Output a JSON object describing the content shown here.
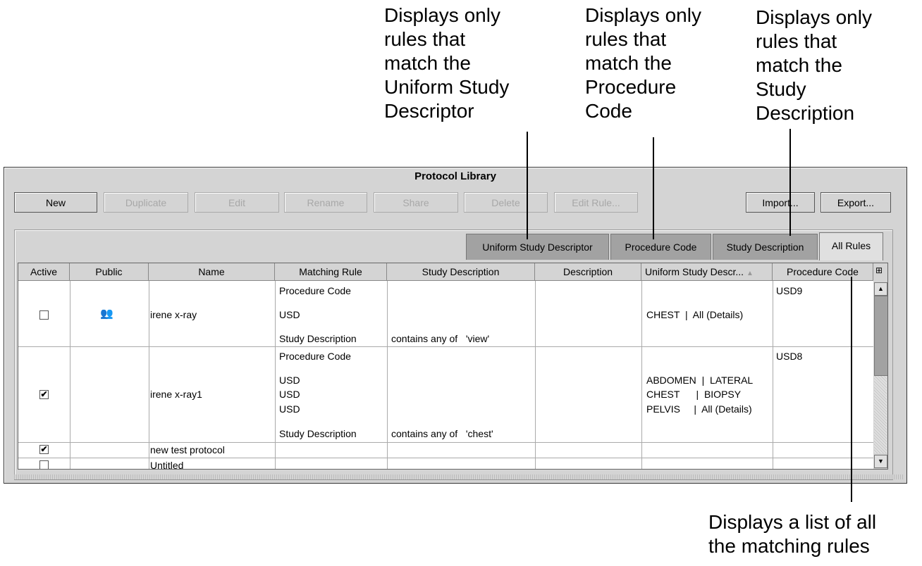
{
  "annotations": {
    "usd": "Displays only\nrules that\nmatch the\nUniform Study\nDescriptor",
    "procedure": "Displays only\nrules that\nmatch the\nProcedure\nCode",
    "study_description": "Displays only\nrules that\nmatch the\nStudy\nDescription",
    "all_rules": "Displays a list of all\nthe matching rules"
  },
  "window": {
    "title": "Protocol Library"
  },
  "toolbar": {
    "new": "New",
    "duplicate": "Duplicate",
    "edit": "Edit",
    "rename": "Rename",
    "share": "Share",
    "delete": "Delete",
    "edit_rule": "Edit Rule...",
    "import": "Import...",
    "export": "Export..."
  },
  "tabs": [
    "Uniform Study Descriptor",
    "Procedure Code",
    "Study Description",
    "All Rules"
  ],
  "selected_tab": "All Rules",
  "table": {
    "headers": [
      "Active",
      "Public",
      "Name",
      "Matching Rule",
      "Study Description",
      "Description",
      "Uniform Study Descr...",
      "Procedure Code"
    ],
    "rows": [
      {
        "active": false,
        "public": true,
        "name": "irene x-ray",
        "rules": [
          "Procedure Code",
          "USD",
          "Study Description"
        ],
        "study_description": "contains any of   'view'",
        "usd": [
          "CHEST  |  All (Details)"
        ],
        "procedure_code": "USD9"
      },
      {
        "active": true,
        "public": false,
        "name": "irene x-ray1",
        "rules": [
          "Procedure Code",
          "USD",
          "USD",
          "USD",
          "Study Description"
        ],
        "study_description": "contains any of   'chest'",
        "usd": [
          "ABDOMEN  |  LATERAL",
          "CHEST      |  BIOPSY",
          "PELVIS     |  All (Details)"
        ],
        "procedure_code": "USD8"
      },
      {
        "active": true,
        "public": false,
        "name": "new test protocol"
      },
      {
        "active": false,
        "public": false,
        "name": "Untitled"
      }
    ]
  }
}
